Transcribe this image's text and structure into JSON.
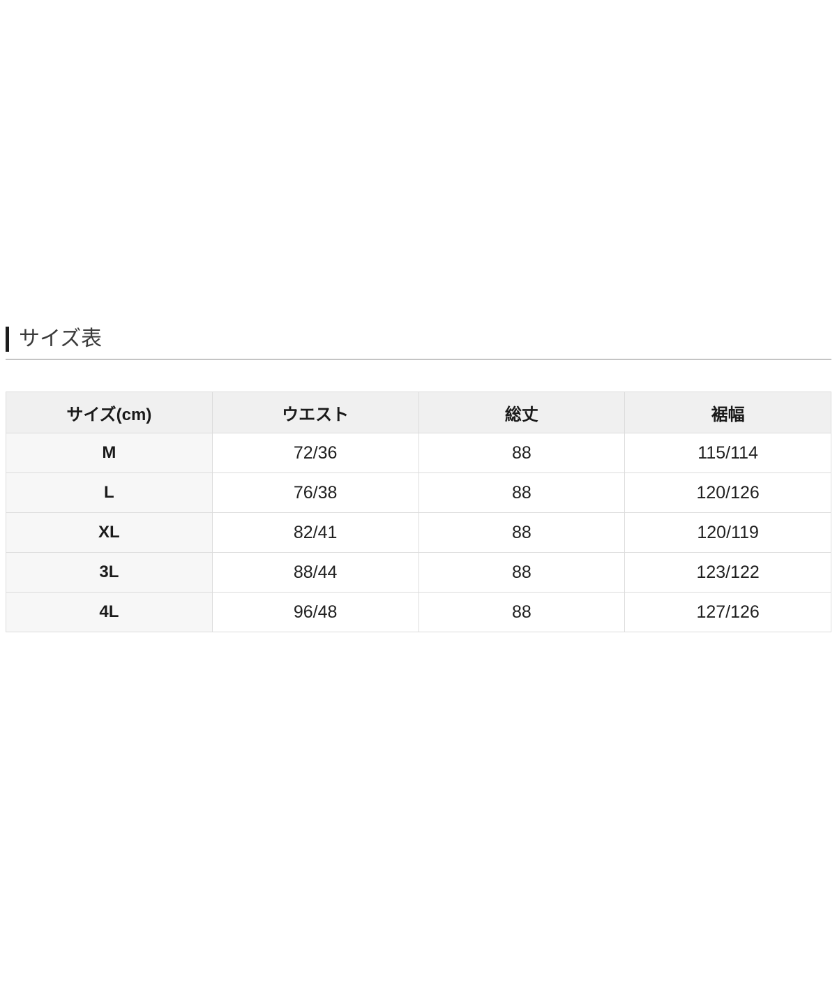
{
  "section": {
    "title": "サイズ表"
  },
  "table": {
    "headers": [
      "サイズ(cm)",
      "ウエスト",
      "総丈",
      "裾幅"
    ],
    "rows": [
      [
        "M",
        "72/36",
        "88",
        "115/114"
      ],
      [
        "L",
        "76/38",
        "88",
        "120/126"
      ],
      [
        "XL",
        "82/41",
        "88",
        "120/119"
      ],
      [
        "3L",
        "88/44",
        "88",
        "123/122"
      ],
      [
        "4L",
        "96/48",
        "88",
        "127/126"
      ]
    ]
  },
  "colors": {
    "header_background": "#f0f0f0",
    "size_column_background": "#f7f7f7",
    "cell_border": "#dcdcdc",
    "divider": "#c4c4c4",
    "title_accent_bar": "#1c1c1c",
    "text": "#222222"
  }
}
